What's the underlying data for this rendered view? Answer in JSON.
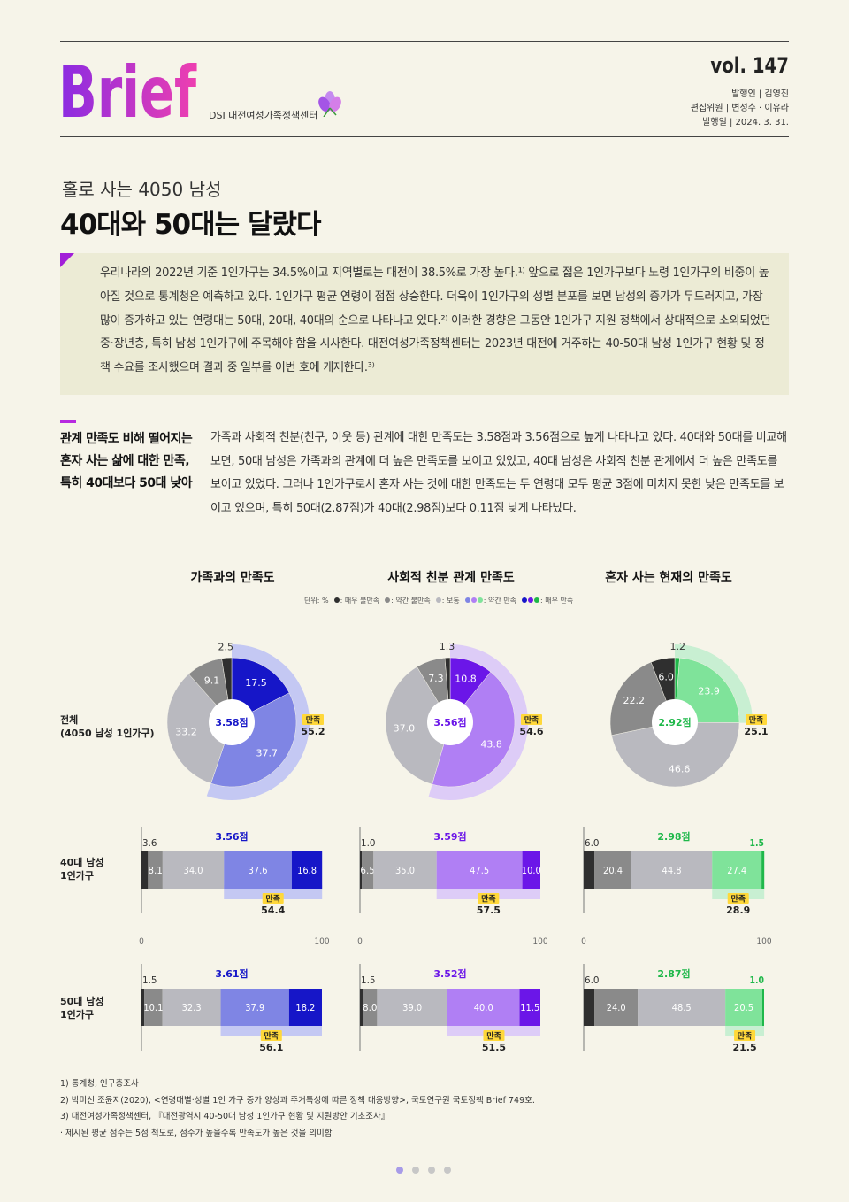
{
  "header": {
    "logo_text": "Brief",
    "org": "DSI 대전여성가족정책센터",
    "vol": "vol. 147",
    "publisher": "발행인 | 김영진",
    "editors": "편집위원 | 변성수 · 이유라",
    "date": "발행일 | 2024. 3. 31."
  },
  "article": {
    "subtitle": "홀로 사는 4050 남성",
    "title": "40대와 50대는 달랐다",
    "intro": "우리나라의 2022년 기준 1인가구는 34.5%이고 지역별로는 대전이 38.5%로 가장 높다.¹⁾ 앞으로 젊은 1인가구보다 노령 1인가구의 비중이 높아질 것으로 통계청은 예측하고 있다. 1인가구 평균 연령이 점점 상승한다. 더욱이 1인가구의 성별 분포를 보면 남성의 증가가 두드러지고, 가장 많이 증가하고 있는 연령대는 50대, 20대, 40대의 순으로 나타나고 있다.²⁾ 이러한 경향은 그동안 1인가구 지원 정책에서 상대적으로 소외되었던 중·장년층, 특히 남성 1인가구에 주목해야 함을 시사한다. 대전여성가족정책센터는 2023년 대전에 거주하는 40-50대 남성 1인가구 현황 및 정책 수요를 조사했으며 결과 중 일부를 이번 호에 게재한다.³⁾",
    "section_head": "관계 만족도 비해 떨어지는 혼자 사는 삶에 대한 만족, 특히 40대보다 50대 낮아",
    "section_body": "가족과 사회적 친분(친구, 이웃 등) 관계에 대한 만족도는 3.58점과 3.56점으로 높게 나타나고 있다. 40대와 50대를 비교해보면, 50대 남성은 가족과의 관계에 더 높은 만족도를 보이고 있었고, 40대 남성은 사회적 친분 관계에서 더 높은 만족도를 보이고 있었다. 그러나 1인가구로서 혼자 사는 것에 대한 만족도는 두 연령대 모두 평균 3점에 미치지 못한 낮은 만족도를 보이고 있으며, 특히 50대(2.87점)가 40대(2.98점)보다 0.11점 낮게 나타났다."
  },
  "legend": {
    "unit": "단위: %",
    "items": [
      "매우 불만족",
      "약간 불만족",
      "보통",
      "약간 만족",
      "매우 만족"
    ]
  },
  "row_labels": {
    "total": "전체\n(4050 남성 1인가구)",
    "forties": "40대 남성\n1인가구",
    "fifties": "50대 남성\n1인가구"
  },
  "satisfaction_label": "만족",
  "axis_ticks": [
    "0",
    "100"
  ],
  "chart_data": [
    {
      "type": "pie",
      "title": "가족과의 만족도",
      "group": "전체 (4050 남성 1인가구)",
      "categories": [
        "매우 불만족",
        "약간 불만족",
        "보통",
        "약간 만족",
        "매우 만족"
      ],
      "values": [
        2.5,
        9.1,
        33.2,
        37.7,
        17.5
      ],
      "score": "3.58점",
      "satisfied": 55.2,
      "colors": [
        "#2f2f2f",
        "#8a8a8a",
        "#b9b9bf",
        "#7f85e4",
        "#1616c8"
      ],
      "sat_color": "#c4c8f3"
    },
    {
      "type": "pie",
      "title": "사회적 친분 관계 만족도",
      "group": "전체 (4050 남성 1인가구)",
      "categories": [
        "매우 불만족",
        "약간 불만족",
        "보통",
        "약간 만족",
        "매우 만족"
      ],
      "values": [
        1.3,
        7.3,
        37.0,
        43.8,
        10.8
      ],
      "score": "3.56점",
      "satisfied": 54.6,
      "colors": [
        "#2f2f2f",
        "#8a8a8a",
        "#b9b9bf",
        "#b07ff4",
        "#6b16e8"
      ],
      "sat_color": "#ddccf7"
    },
    {
      "type": "pie",
      "title": "혼자 사는 현재의 만족도",
      "group": "전체 (4050 남성 1인가구)",
      "categories": [
        "매우 불만족",
        "약간 불만족",
        "보통",
        "약간 만족",
        "매우 만족"
      ],
      "values": [
        6.0,
        22.2,
        46.6,
        23.9,
        1.2
      ],
      "score": "2.92점",
      "satisfied": 25.1,
      "colors": [
        "#2f2f2f",
        "#8a8a8a",
        "#b9b9bf",
        "#7fe39a",
        "#1fb84a"
      ],
      "sat_color": "#c8efd2"
    },
    {
      "type": "bar",
      "title": "가족과의 만족도",
      "group": "40대 남성 1인가구",
      "categories": [
        "매우 불만족",
        "약간 불만족",
        "보통",
        "약간 만족",
        "매우 만족"
      ],
      "values": [
        3.6,
        8.1,
        34.0,
        37.6,
        16.8
      ],
      "score": "3.56점",
      "satisfied": 54.4,
      "xlim": [
        0,
        100
      ]
    },
    {
      "type": "bar",
      "title": "사회적 친분 관계 만족도",
      "group": "40대 남성 1인가구",
      "categories": [
        "매우 불만족",
        "약간 불만족",
        "보통",
        "약간 만족",
        "매우 만족"
      ],
      "values": [
        1.0,
        6.5,
        35.0,
        47.5,
        10.0
      ],
      "score": "3.59점",
      "satisfied": 57.5,
      "xlim": [
        0,
        100
      ]
    },
    {
      "type": "bar",
      "title": "혼자 사는 현재의 만족도",
      "group": "40대 남성 1인가구",
      "categories": [
        "매우 불만족",
        "약간 불만족",
        "보통",
        "약간 만족",
        "매우 만족"
      ],
      "values": [
        6.0,
        20.4,
        44.8,
        27.4,
        1.5
      ],
      "score": "2.98점",
      "satisfied": 28.9,
      "xlim": [
        0,
        100
      ]
    },
    {
      "type": "bar",
      "title": "가족과의 만족도",
      "group": "50대 남성 1인가구",
      "categories": [
        "매우 불만족",
        "약간 불만족",
        "보통",
        "약간 만족",
        "매우 만족"
      ],
      "values": [
        1.5,
        10.1,
        32.3,
        37.9,
        18.2
      ],
      "score": "3.61점",
      "satisfied": 56.1,
      "xlim": [
        0,
        100
      ]
    },
    {
      "type": "bar",
      "title": "사회적 친분 관계 만족도",
      "group": "50대 남성 1인가구",
      "categories": [
        "매우 불만족",
        "약간 불만족",
        "보통",
        "약간 만족",
        "매우 만족"
      ],
      "values": [
        1.5,
        8.0,
        39.0,
        40.0,
        11.5
      ],
      "score": "3.52점",
      "satisfied": 51.5,
      "xlim": [
        0,
        100
      ]
    },
    {
      "type": "bar",
      "title": "혼자 사는 현재의 만족도",
      "group": "50대 남성 1인가구",
      "categories": [
        "매우 불만족",
        "약간 불만족",
        "보통",
        "약간 만족",
        "매우 만족"
      ],
      "values": [
        6.0,
        24.0,
        48.5,
        20.5,
        1.0
      ],
      "score": "2.87점",
      "satisfied": 21.5,
      "xlim": [
        0,
        100
      ]
    }
  ],
  "notes": [
    "1) 통계청, 인구총조사",
    "2) 박미선·조윤지(2020), <연령대별·성별 1인 가구 증가 양상과 주거특성에 따른 정책 대응방향>, 국토연구원 국토정책 Brief 749호.",
    "3) 대전여성가족정책센터, 『대전광역시 40-50대 남성 1인가구 현황 및 지원방안 기초조사』",
    "· 제시된 평균 점수는 5점 척도로, 점수가 높을수록 만족도가 높은 것을 의미함"
  ]
}
